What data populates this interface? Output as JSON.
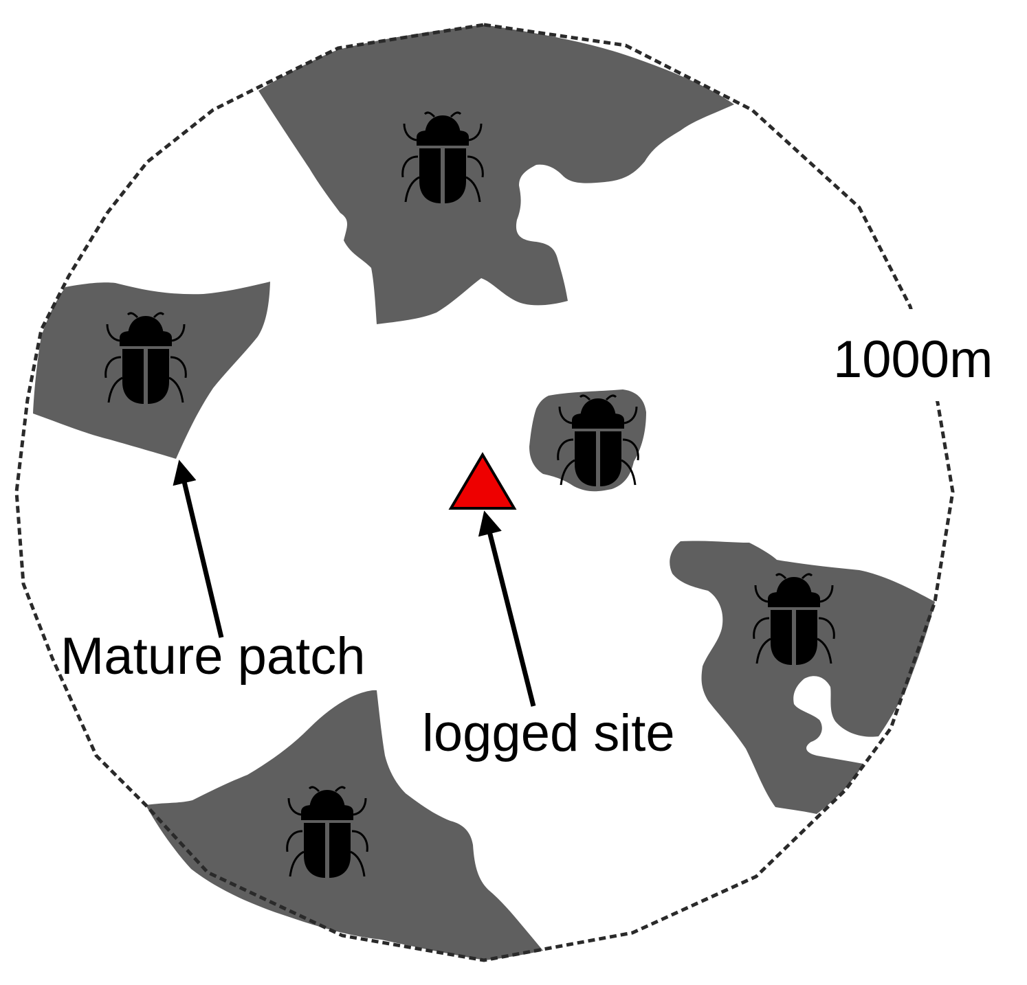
{
  "labels": {
    "radius": "1000m",
    "mature_patch": "Mature patch",
    "logged_site": "logged site"
  },
  "colors": {
    "patch_fill": "#5f5f5f",
    "beetle_fill": "#000000",
    "site_marker_fill": "#ee0000",
    "boundary_stroke": "#2a2a2a",
    "background": "#ffffff"
  },
  "icons": {
    "beetle": "beetle-icon",
    "site_marker": "triangle-icon"
  }
}
